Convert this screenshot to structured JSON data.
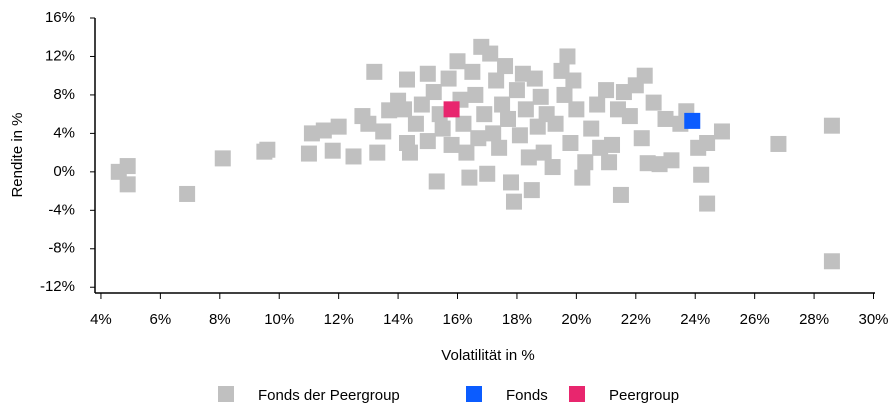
{
  "chart_data": {
    "type": "scatter",
    "x_label": "Volatilität in %",
    "y_label": "Rendite in %",
    "xlim": [
      3.8,
      30.05
    ],
    "ylim": [
      -12.6,
      16
    ],
    "xticks": [
      {
        "value": 4,
        "label": "4%"
      },
      {
        "value": 6,
        "label": "6%"
      },
      {
        "value": 8,
        "label": "8%"
      },
      {
        "value": 10,
        "label": "10%"
      },
      {
        "value": 12,
        "label": "12%"
      },
      {
        "value": 14,
        "label": "14%"
      },
      {
        "value": 16,
        "label": "16%"
      },
      {
        "value": 18,
        "label": "18%"
      },
      {
        "value": 20,
        "label": "20%"
      },
      {
        "value": 22,
        "label": "22%"
      },
      {
        "value": 24,
        "label": "24%"
      },
      {
        "value": 26,
        "label": "26%"
      },
      {
        "value": 28,
        "label": "28%"
      },
      {
        "value": 30,
        "label": "30%"
      }
    ],
    "yticks": [
      {
        "value": -12,
        "label": "-12%"
      },
      {
        "value": -8,
        "label": "-8%"
      },
      {
        "value": -4,
        "label": "-4%"
      },
      {
        "value": 0,
        "label": "0%"
      },
      {
        "value": 4,
        "label": "4%"
      },
      {
        "value": 8,
        "label": "8%"
      },
      {
        "value": 12,
        "label": "12%"
      },
      {
        "value": 16,
        "label": "16%"
      }
    ],
    "legend": "bottom",
    "series": [
      {
        "name": "Fonds der Peergroup",
        "color": "#c0c0c0",
        "x": [
          4.6,
          4.9,
          4.9,
          6.9,
          8.1,
          9.5,
          9.6,
          11.0,
          11.1,
          11.5,
          11.8,
          12.0,
          12.5,
          12.8,
          13.0,
          13.2,
          13.3,
          13.5,
          13.7,
          14.0,
          14.2,
          14.3,
          14.3,
          14.4,
          14.6,
          14.8,
          15.0,
          15.0,
          15.2,
          15.3,
          15.4,
          15.5,
          15.7,
          15.8,
          16.0,
          16.1,
          16.2,
          16.3,
          16.4,
          16.5,
          16.6,
          16.7,
          16.8,
          16.9,
          17.0,
          17.1,
          17.2,
          17.3,
          17.4,
          17.5,
          17.6,
          17.7,
          17.8,
          17.9,
          18.0,
          18.1,
          18.2,
          18.3,
          18.4,
          18.5,
          18.6,
          18.7,
          18.8,
          18.9,
          19.0,
          19.2,
          19.3,
          19.5,
          19.6,
          19.7,
          19.8,
          19.9,
          20.0,
          20.2,
          20.3,
          20.5,
          20.7,
          20.8,
          21.0,
          21.1,
          21.2,
          21.4,
          21.5,
          21.6,
          21.8,
          22.0,
          22.2,
          22.3,
          22.4,
          22.6,
          22.8,
          23.0,
          23.2,
          23.5,
          23.7,
          24.1,
          24.2,
          24.4,
          24.4,
          24.9,
          26.8,
          28.6,
          28.6
        ],
        "values": [
          0,
          0.6,
          -1.3,
          -2.3,
          1.4,
          2.1,
          2.3,
          1.9,
          4.0,
          4.3,
          2.2,
          4.7,
          1.6,
          5.8,
          5.0,
          10.4,
          2.0,
          4.2,
          6.4,
          7.4,
          6.5,
          9.6,
          3.0,
          2.0,
          5.0,
          7.0,
          10.2,
          3.2,
          8.3,
          -1.0,
          6.0,
          4.5,
          9.7,
          2.8,
          11.5,
          7.5,
          5.0,
          2.0,
          -0.6,
          10.4,
          8.0,
          3.5,
          13.0,
          6.0,
          -0.2,
          12.3,
          4.0,
          9.5,
          2.5,
          7.0,
          11.0,
          5.5,
          -1.1,
          -3.1,
          8.5,
          3.8,
          10.2,
          6.5,
          1.5,
          -1.9,
          9.7,
          4.7,
          7.8,
          2.0,
          6.0,
          0.5,
          5.0,
          10.5,
          8.0,
          12.0,
          3.0,
          9.5,
          6.5,
          -0.6,
          1.0,
          4.5,
          7.0,
          2.5,
          8.5,
          1.0,
          2.8,
          6.5,
          -2.4,
          8.3,
          5.8,
          9.0,
          3.5,
          10.0,
          0.9,
          7.2,
          0.8,
          5.5,
          1.2,
          5.0,
          6.3,
          2.5,
          -0.3,
          3.0,
          -3.3,
          4.2,
          2.9,
          4.8,
          -9.3
        ]
      },
      {
        "name": "Fonds",
        "color": "#0b5cff",
        "x": [
          23.9
        ],
        "values": [
          5.3
        ]
      },
      {
        "name": "Peergroup",
        "color": "#e8266e",
        "x": [
          15.8
        ],
        "values": [
          6.5
        ]
      }
    ]
  }
}
